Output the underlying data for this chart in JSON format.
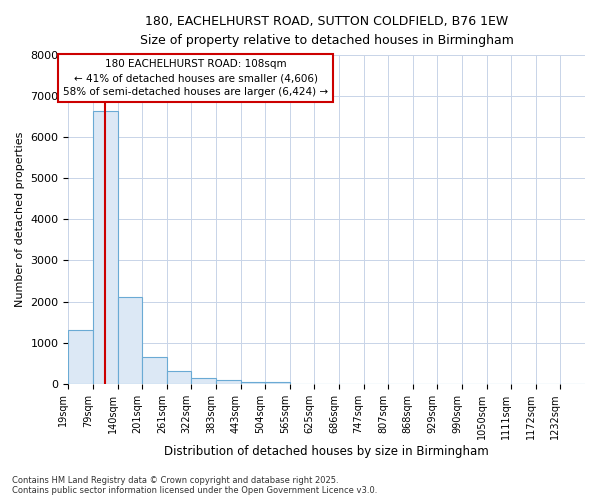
{
  "title_line1": "180, EACHELHURST ROAD, SUTTON COLDFIELD, B76 1EW",
  "title_line2": "Size of property relative to detached houses in Birmingham",
  "xlabel": "Distribution of detached houses by size in Birmingham",
  "ylabel": "Number of detached properties",
  "bin_labels": [
    "19sqm",
    "79sqm",
    "140sqm",
    "201sqm",
    "261sqm",
    "322sqm",
    "383sqm",
    "443sqm",
    "504sqm",
    "565sqm",
    "625sqm",
    "686sqm",
    "747sqm",
    "807sqm",
    "868sqm",
    "929sqm",
    "990sqm",
    "1050sqm",
    "1111sqm",
    "1172sqm",
    "1232sqm"
  ],
  "bin_values": [
    1320,
    6650,
    2100,
    650,
    300,
    150,
    80,
    50,
    30,
    0,
    0,
    0,
    0,
    0,
    0,
    0,
    0,
    0,
    0,
    0,
    0
  ],
  "bar_color": "#dce8f5",
  "bar_edge_color": "#6aaad4",
  "vline_color": "#cc0000",
  "annotation_text": "180 EACHELHURST ROAD: 108sqm\n← 41% of detached houses are smaller (4,606)\n58% of semi-detached houses are larger (6,424) →",
  "annotation_box_color": "white",
  "annotation_box_edge": "#cc0000",
  "ylim": [
    0,
    8000
  ],
  "yticks": [
    0,
    1000,
    2000,
    3000,
    4000,
    5000,
    6000,
    7000,
    8000
  ],
  "footer": "Contains HM Land Registry data © Crown copyright and database right 2025.\nContains public sector information licensed under the Open Government Licence v3.0.",
  "bg_color": "#ffffff",
  "grid_color": "#c8d4e8"
}
